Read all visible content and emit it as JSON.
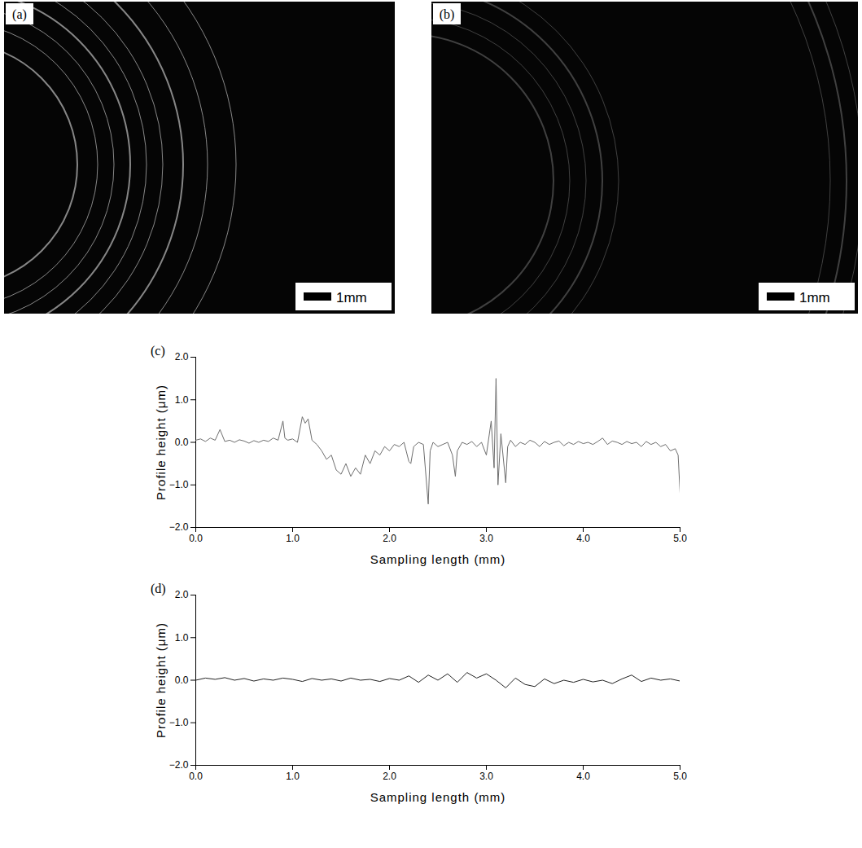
{
  "images": [
    {
      "label": "(a)",
      "scale_bar": "1mm"
    },
    {
      "label": "(b)",
      "scale_bar": "1mm"
    }
  ],
  "chart_data": [
    {
      "type": "line",
      "title": "(c)",
      "x_label": "Sampling length (mm)",
      "y_label": "Profile height (μm)",
      "xlim": [
        0,
        5
      ],
      "xticks": [
        0,
        1,
        2,
        3,
        4,
        5
      ],
      "ylim": [
        -2,
        2
      ],
      "yticks": [
        -2,
        -1,
        0,
        1,
        2
      ],
      "grid": false,
      "color": "#6e6e6e",
      "x": [
        0,
        0.05,
        0.1,
        0.15,
        0.2,
        0.25,
        0.3,
        0.35,
        0.4,
        0.45,
        0.5,
        0.55,
        0.6,
        0.65,
        0.7,
        0.75,
        0.8,
        0.85,
        0.9,
        0.92,
        0.95,
        1.0,
        1.05,
        1.1,
        1.13,
        1.16,
        1.2,
        1.25,
        1.3,
        1.35,
        1.4,
        1.45,
        1.5,
        1.55,
        1.6,
        1.65,
        1.7,
        1.75,
        1.8,
        1.85,
        1.9,
        1.95,
        2.0,
        2.05,
        2.1,
        2.15,
        2.2,
        2.22,
        2.25,
        2.3,
        2.35,
        2.4,
        2.42,
        2.45,
        2.5,
        2.55,
        2.6,
        2.65,
        2.68,
        2.7,
        2.75,
        2.8,
        2.85,
        2.9,
        2.95,
        3.0,
        3.05,
        3.08,
        3.1,
        3.12,
        3.15,
        3.2,
        3.22,
        3.25,
        3.3,
        3.35,
        3.4,
        3.45,
        3.5,
        3.55,
        3.6,
        3.65,
        3.7,
        3.75,
        3.8,
        3.85,
        3.9,
        3.95,
        4.0,
        4.05,
        4.1,
        4.15,
        4.2,
        4.25,
        4.3,
        4.35,
        4.4,
        4.45,
        4.5,
        4.55,
        4.6,
        4.65,
        4.7,
        4.75,
        4.8,
        4.85,
        4.9,
        4.95,
        4.98,
        5.0
      ],
      "values": [
        0.05,
        0.08,
        0.02,
        0.1,
        0.05,
        0.3,
        0.02,
        0.05,
        0.0,
        0.06,
        0.03,
        -0.02,
        0.04,
        0.0,
        0.05,
        0.02,
        0.1,
        0.05,
        0.5,
        0.1,
        0.05,
        0.08,
        0.0,
        0.6,
        0.45,
        0.55,
        0.05,
        -0.05,
        -0.2,
        -0.4,
        -0.3,
        -0.65,
        -0.75,
        -0.5,
        -0.8,
        -0.6,
        -0.75,
        -0.3,
        -0.5,
        -0.2,
        -0.3,
        -0.1,
        -0.2,
        -0.05,
        -0.1,
        0.0,
        -0.45,
        -0.5,
        -0.1,
        0.0,
        -0.05,
        -1.45,
        -0.2,
        0.0,
        -0.1,
        -0.05,
        0.0,
        -0.3,
        -0.8,
        -0.2,
        0.0,
        -0.05,
        0.02,
        -0.1,
        0.0,
        -0.3,
        0.5,
        -0.6,
        1.5,
        -1.0,
        0.2,
        -0.95,
        -0.1,
        0.05,
        -0.1,
        0.0,
        -0.05,
        0.05,
        0.0,
        -0.1,
        0.02,
        -0.05,
        0.0,
        0.03,
        -0.08,
        0.0,
        -0.05,
        0.02,
        -0.03,
        0.0,
        -0.05,
        0.02,
        0.1,
        -0.05,
        0.03,
        0.0,
        -0.05,
        0.02,
        -0.03,
        0.0,
        -0.1,
        0.02,
        -0.05,
        0.0,
        -0.1,
        -0.05,
        -0.2,
        -0.15,
        -0.3,
        -1.2
      ]
    },
    {
      "type": "line",
      "title": "(d)",
      "x_label": "Sampling length (mm)",
      "y_label": "Profile height (μm)",
      "xlim": [
        0,
        5
      ],
      "xticks": [
        0,
        1,
        2,
        3,
        4,
        5
      ],
      "ylim": [
        -2,
        2
      ],
      "yticks": [
        -2,
        -1,
        0,
        1,
        2
      ],
      "grid": false,
      "color": "#222222",
      "x": [
        0,
        0.1,
        0.2,
        0.3,
        0.4,
        0.5,
        0.6,
        0.7,
        0.8,
        0.9,
        1.0,
        1.1,
        1.2,
        1.3,
        1.4,
        1.5,
        1.6,
        1.7,
        1.8,
        1.9,
        2.0,
        2.1,
        2.2,
        2.3,
        2.4,
        2.5,
        2.6,
        2.7,
        2.8,
        2.9,
        3.0,
        3.1,
        3.2,
        3.3,
        3.4,
        3.5,
        3.6,
        3.7,
        3.8,
        3.9,
        4.0,
        4.1,
        4.2,
        4.3,
        4.4,
        4.5,
        4.6,
        4.7,
        4.8,
        4.9,
        5.0
      ],
      "values": [
        0.0,
        0.05,
        0.02,
        0.06,
        0.0,
        0.04,
        -0.02,
        0.03,
        0.0,
        0.05,
        0.02,
        -0.03,
        0.04,
        0.0,
        0.03,
        -0.02,
        0.05,
        0.0,
        0.02,
        -0.03,
        0.04,
        0.0,
        0.1,
        -0.05,
        0.12,
        0.0,
        0.15,
        -0.05,
        0.18,
        0.05,
        0.15,
        0.0,
        -0.18,
        0.05,
        -0.1,
        -0.15,
        0.03,
        -0.08,
        0.0,
        -0.05,
        0.02,
        -0.04,
        0.0,
        -0.08,
        0.03,
        0.12,
        -0.03,
        0.05,
        0.0,
        0.03,
        -0.02
      ]
    }
  ]
}
